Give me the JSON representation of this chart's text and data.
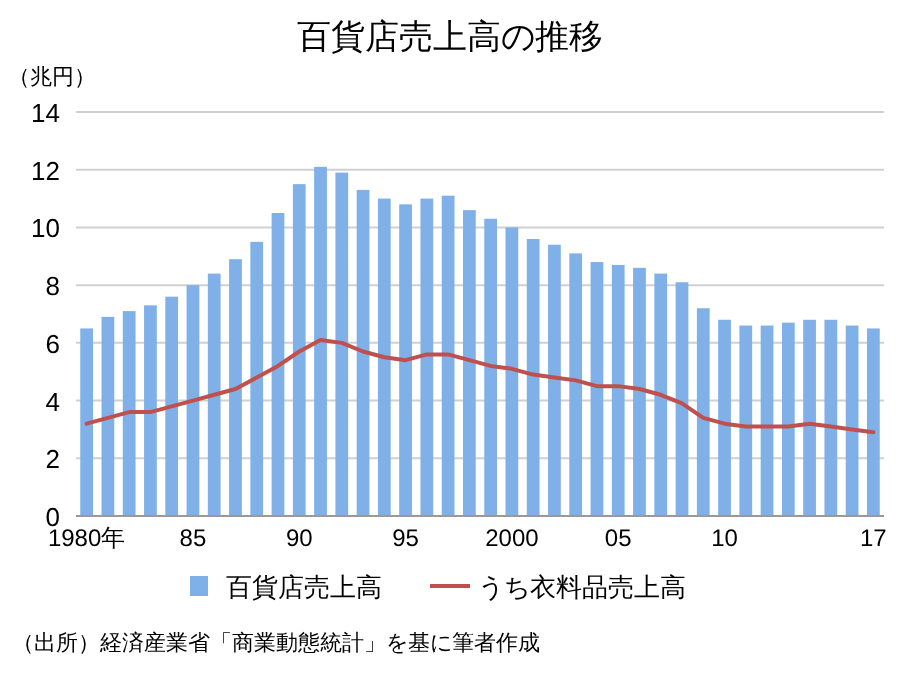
{
  "chart_data": {
    "type": "bar",
    "title": "百貨店売上高の推移",
    "ylabel": "（兆円）",
    "categories": [
      "1980年",
      null,
      null,
      null,
      null,
      "85",
      null,
      null,
      null,
      null,
      "90",
      null,
      null,
      null,
      null,
      "95",
      null,
      null,
      null,
      null,
      "2000",
      null,
      null,
      null,
      null,
      "05",
      null,
      null,
      null,
      null,
      "10",
      null,
      null,
      null,
      null,
      null,
      null,
      "17"
    ],
    "series": [
      {
        "name": "百貨店売上高",
        "color": "#7fb0e8",
        "values": [
          6.5,
          6.9,
          7.1,
          7.3,
          7.6,
          8.0,
          8.4,
          8.9,
          9.5,
          10.5,
          11.5,
          12.1,
          11.9,
          11.3,
          11.0,
          10.8,
          11.0,
          11.1,
          10.6,
          10.3,
          10.0,
          9.6,
          9.4,
          9.1,
          8.8,
          8.7,
          8.6,
          8.4,
          8.1,
          7.2,
          6.8,
          6.6,
          6.6,
          6.7,
          6.8,
          6.8,
          6.6,
          6.5
        ]
      },
      {
        "name": "うち衣料品売上高",
        "type": "line",
        "color": "#c0504d",
        "values": [
          3.2,
          3.4,
          3.6,
          3.6,
          3.8,
          4.0,
          4.2,
          4.4,
          4.8,
          5.2,
          5.7,
          6.1,
          6.0,
          5.7,
          5.5,
          5.4,
          5.6,
          5.6,
          5.4,
          5.2,
          5.1,
          4.9,
          4.8,
          4.7,
          4.5,
          4.5,
          4.4,
          4.2,
          3.9,
          3.4,
          3.2,
          3.1,
          3.1,
          3.1,
          3.2,
          3.1,
          3.0,
          2.9
        ]
      }
    ],
    "ylim": [
      0,
      14
    ],
    "yticks": [
      0,
      2,
      4,
      6,
      8,
      10,
      12,
      14
    ],
    "grid": "y",
    "legend": "bottom",
    "annotations": [
      "（出所）経済産業省「商業動態統計」を基に筆者作成"
    ]
  }
}
